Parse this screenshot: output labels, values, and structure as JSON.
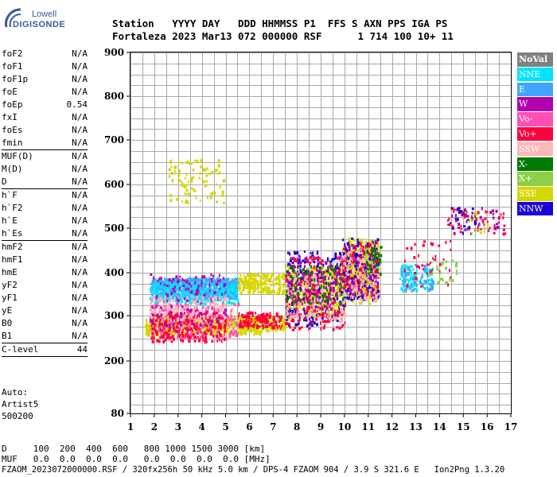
{
  "logo": {
    "line1": "Lowell",
    "line2": "DIGISONDE"
  },
  "header": {
    "line1": "Station   YYYY DAY   DDD HHMMSS P1  FFS S AXN PPS IGA PS",
    "line2": "Fortaleza 2023 Mar13 072 000000 RSF      1 714 100 10+ 11"
  },
  "params": {
    "group1": [
      {
        "label": "foF2",
        "value": "N/A"
      },
      {
        "label": "foF1",
        "value": "N/A"
      },
      {
        "label": "foF1p",
        "value": "N/A"
      },
      {
        "label": "foE",
        "value": "N/A"
      },
      {
        "label": "foEp",
        "value": "0.54"
      },
      {
        "label": "fxI",
        "value": "N/A"
      },
      {
        "label": "foEs",
        "value": "N/A"
      },
      {
        "label": "fmin",
        "value": "N/A"
      }
    ],
    "group2": [
      {
        "label": "MUF(D)",
        "value": "N/A"
      },
      {
        "label": "M(D)",
        "value": "N/A"
      },
      {
        "label": "D",
        "value": "N/A"
      }
    ],
    "group3": [
      {
        "label": "h`F",
        "value": "N/A"
      },
      {
        "label": "h`F2",
        "value": "N/A"
      },
      {
        "label": "h`E",
        "value": "N/A"
      },
      {
        "label": "h`Es",
        "value": "N/A"
      }
    ],
    "group4": [
      {
        "label": "hmF2",
        "value": "N/A"
      },
      {
        "label": "hmF1",
        "value": "N/A"
      },
      {
        "label": "hmE",
        "value": "N/A"
      },
      {
        "label": "yF2",
        "value": "N/A"
      },
      {
        "label": "yF1",
        "value": "N/A"
      },
      {
        "label": "yE",
        "value": "N/A"
      },
      {
        "label": "B0",
        "value": "N/A"
      },
      {
        "label": "B1",
        "value": "N/A"
      }
    ],
    "clevel": {
      "label": "C-level",
      "value": "44"
    }
  },
  "auto": {
    "line1": "Auto:",
    "line2": "Artist5",
    "line3": "500200"
  },
  "footer": {
    "d_row": "D     100  200  400  600   800 1000 1500 3000 [km]",
    "muf_row": "MUF   0.0  0.0  0.0  0.0   0.0  0.0  0.0  0.0 [MHz]",
    "info": "FZAOM_2023072000000.RSF / 320fx256h 50 kHz 5.0 km / DPS-4 FZAOM 904 / 3.9 S 321.6 E   Ion2Png 1.3.20"
  },
  "legend": [
    {
      "label": "NoVal",
      "color": "#808080"
    },
    {
      "label": "NNE",
      "color": "#00e5ff"
    },
    {
      "label": "E",
      "color": "#3ea6ff"
    },
    {
      "label": "W",
      "color": "#b000b0"
    },
    {
      "label": "Vo-",
      "color": "#ff4fb4"
    },
    {
      "label": "Vo+",
      "color": "#ff003c"
    },
    {
      "label": "SSW",
      "color": "#ffb6b6"
    },
    {
      "label": "X-",
      "color": "#007a00"
    },
    {
      "label": "X+",
      "color": "#8cd04a"
    },
    {
      "label": "SSE",
      "color": "#d6d600"
    },
    {
      "label": "NNW",
      "color": "#1a00d8"
    }
  ],
  "chart_data": {
    "type": "scatter",
    "xlim": [
      1,
      17
    ],
    "ylim": [
      80,
      900
    ],
    "xticks": [
      1,
      2,
      3,
      4,
      5,
      6,
      7,
      8,
      9,
      10,
      11,
      12,
      13,
      14,
      15,
      16,
      17
    ],
    "yticks": [
      80,
      200,
      300,
      400,
      500,
      600,
      700,
      800,
      900
    ],
    "grid": true,
    "legend_position": "right",
    "clusters": [
      {
        "series": "E",
        "x": [
          1.8,
          5.5
        ],
        "y": [
          340,
          390
        ],
        "n": 700
      },
      {
        "series": "NNE",
        "x": [
          1.8,
          5.5
        ],
        "y": [
          330,
          380
        ],
        "n": 260
      },
      {
        "series": "SSE",
        "x": [
          1.6,
          6.5
        ],
        "y": [
          260,
          300
        ],
        "n": 500
      },
      {
        "series": "SSE",
        "x": [
          5.5,
          7.5
        ],
        "y": [
          270,
          300
        ],
        "n": 160
      },
      {
        "series": "Vo-",
        "x": [
          1.8,
          5.5
        ],
        "y": [
          250,
          330
        ],
        "n": 260
      },
      {
        "series": "Vo+",
        "x": [
          1.8,
          5.0
        ],
        "y": [
          245,
          310
        ],
        "n": 260
      },
      {
        "series": "W",
        "x": [
          1.8,
          5.0
        ],
        "y": [
          280,
          400
        ],
        "n": 140
      },
      {
        "series": "SSW",
        "x": [
          1.8,
          5.0
        ],
        "y": [
          290,
          350
        ],
        "n": 140
      },
      {
        "series": "Vo+",
        "x": [
          5.5,
          7.5
        ],
        "y": [
          275,
          310
        ],
        "n": 140
      },
      {
        "series": "SSE",
        "x": [
          2.6,
          4.9
        ],
        "y": [
          560,
          660
        ],
        "n": 90
      },
      {
        "series": "SSE",
        "x": [
          5.5,
          7.5
        ],
        "y": [
          355,
          400
        ],
        "n": 200
      },
      {
        "series": "SSE",
        "x": [
          7.5,
          10
        ],
        "y": [
          300,
          420
        ],
        "n": 500
      },
      {
        "series": "NNW",
        "x": [
          7.5,
          10
        ],
        "y": [
          280,
          450
        ],
        "n": 220
      },
      {
        "series": "W",
        "x": [
          7.5,
          10
        ],
        "y": [
          300,
          440
        ],
        "n": 220
      },
      {
        "series": "Vo+",
        "x": [
          7.5,
          10
        ],
        "y": [
          270,
          440
        ],
        "n": 180
      },
      {
        "series": "SSW",
        "x": [
          7.5,
          10
        ],
        "y": [
          290,
          400
        ],
        "n": 120
      },
      {
        "series": "X-",
        "x": [
          7.5,
          10
        ],
        "y": [
          330,
          420
        ],
        "n": 80
      },
      {
        "series": "W",
        "x": [
          9.9,
          11.4
        ],
        "y": [
          340,
          470
        ],
        "n": 300
      },
      {
        "series": "SSE",
        "x": [
          9.9,
          11.4
        ],
        "y": [
          330,
          480
        ],
        "n": 200
      },
      {
        "series": "NNW",
        "x": [
          9.9,
          11.4
        ],
        "y": [
          340,
          480
        ],
        "n": 120
      },
      {
        "series": "Vo+",
        "x": [
          9.9,
          11.4
        ],
        "y": [
          350,
          470
        ],
        "n": 100
      },
      {
        "series": "SSW",
        "x": [
          9.9,
          11.4
        ],
        "y": [
          330,
          450
        ],
        "n": 80
      },
      {
        "series": "X-",
        "x": [
          10.8,
          11.5
        ],
        "y": [
          400,
          470
        ],
        "n": 40
      },
      {
        "series": "NNE",
        "x": [
          12.3,
          13.7
        ],
        "y": [
          360,
          420
        ],
        "n": 90
      },
      {
        "series": "E",
        "x": [
          12.3,
          13.7
        ],
        "y": [
          360,
          420
        ],
        "n": 60
      },
      {
        "series": "Vo+",
        "x": [
          12.5,
          14.5
        ],
        "y": [
          370,
          480
        ],
        "n": 40
      },
      {
        "series": "X+",
        "x": [
          13.5,
          14.7
        ],
        "y": [
          380,
          430
        ],
        "n": 25
      },
      {
        "series": "W",
        "x": [
          14.3,
          16.8
        ],
        "y": [
          490,
          550
        ],
        "n": 40
      },
      {
        "series": "Vo+",
        "x": [
          14.3,
          16.8
        ],
        "y": [
          490,
          550
        ],
        "n": 40
      },
      {
        "series": "NNW",
        "x": [
          14.3,
          15.5
        ],
        "y": [
          490,
          550
        ],
        "n": 25
      },
      {
        "series": "SSE",
        "x": [
          15.0,
          16.0
        ],
        "y": [
          490,
          540
        ],
        "n": 15
      }
    ]
  }
}
